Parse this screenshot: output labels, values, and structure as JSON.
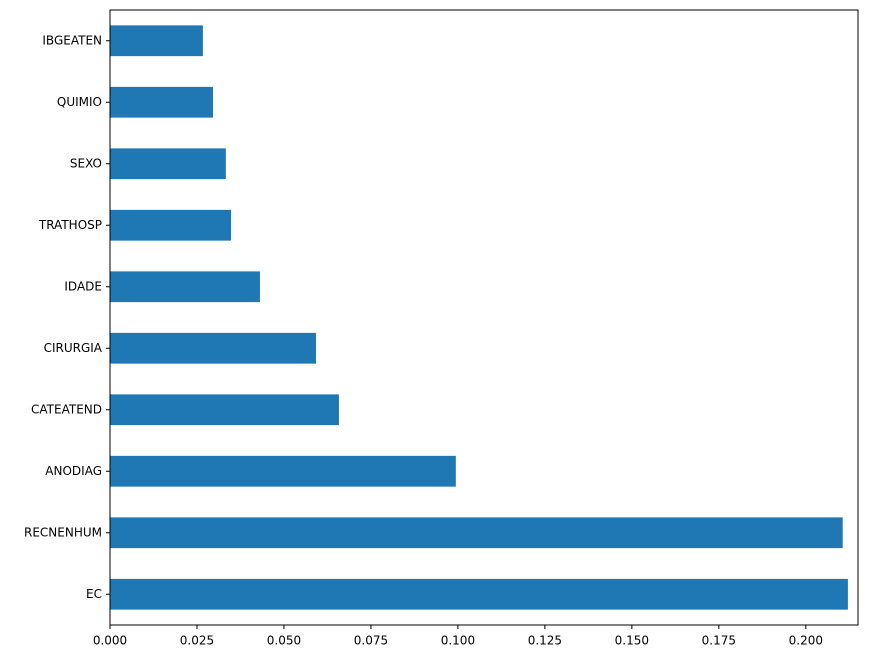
{
  "chart_data": {
    "type": "barh",
    "categories": [
      "EC",
      "RECNENHUM",
      "ANODIAG",
      "CATEATEND",
      "CIRURGIA",
      "IDADE",
      "TRATHOSP",
      "SEXO",
      "QUIMIO",
      "IBGEATEN"
    ],
    "values": [
      0.2121,
      0.2106,
      0.0994,
      0.0658,
      0.0592,
      0.0431,
      0.0348,
      0.0333,
      0.0296,
      0.0267
    ],
    "color": "#1f77b4",
    "xlim": [
      0,
      0.215
    ],
    "xticks": [
      {
        "value": 0,
        "label": "0.000"
      },
      {
        "value": 0.025,
        "label": "0.025"
      },
      {
        "value": 0.05,
        "label": "0.050"
      },
      {
        "value": 0.075,
        "label": "0.075"
      },
      {
        "value": 0.1,
        "label": "0.100"
      },
      {
        "value": 0.125,
        "label": "0.125"
      },
      {
        "value": 0.15,
        "label": "0.150"
      },
      {
        "value": 0.175,
        "label": "0.175"
      },
      {
        "value": 0.2,
        "label": "0.200"
      }
    ],
    "grid": false
  }
}
